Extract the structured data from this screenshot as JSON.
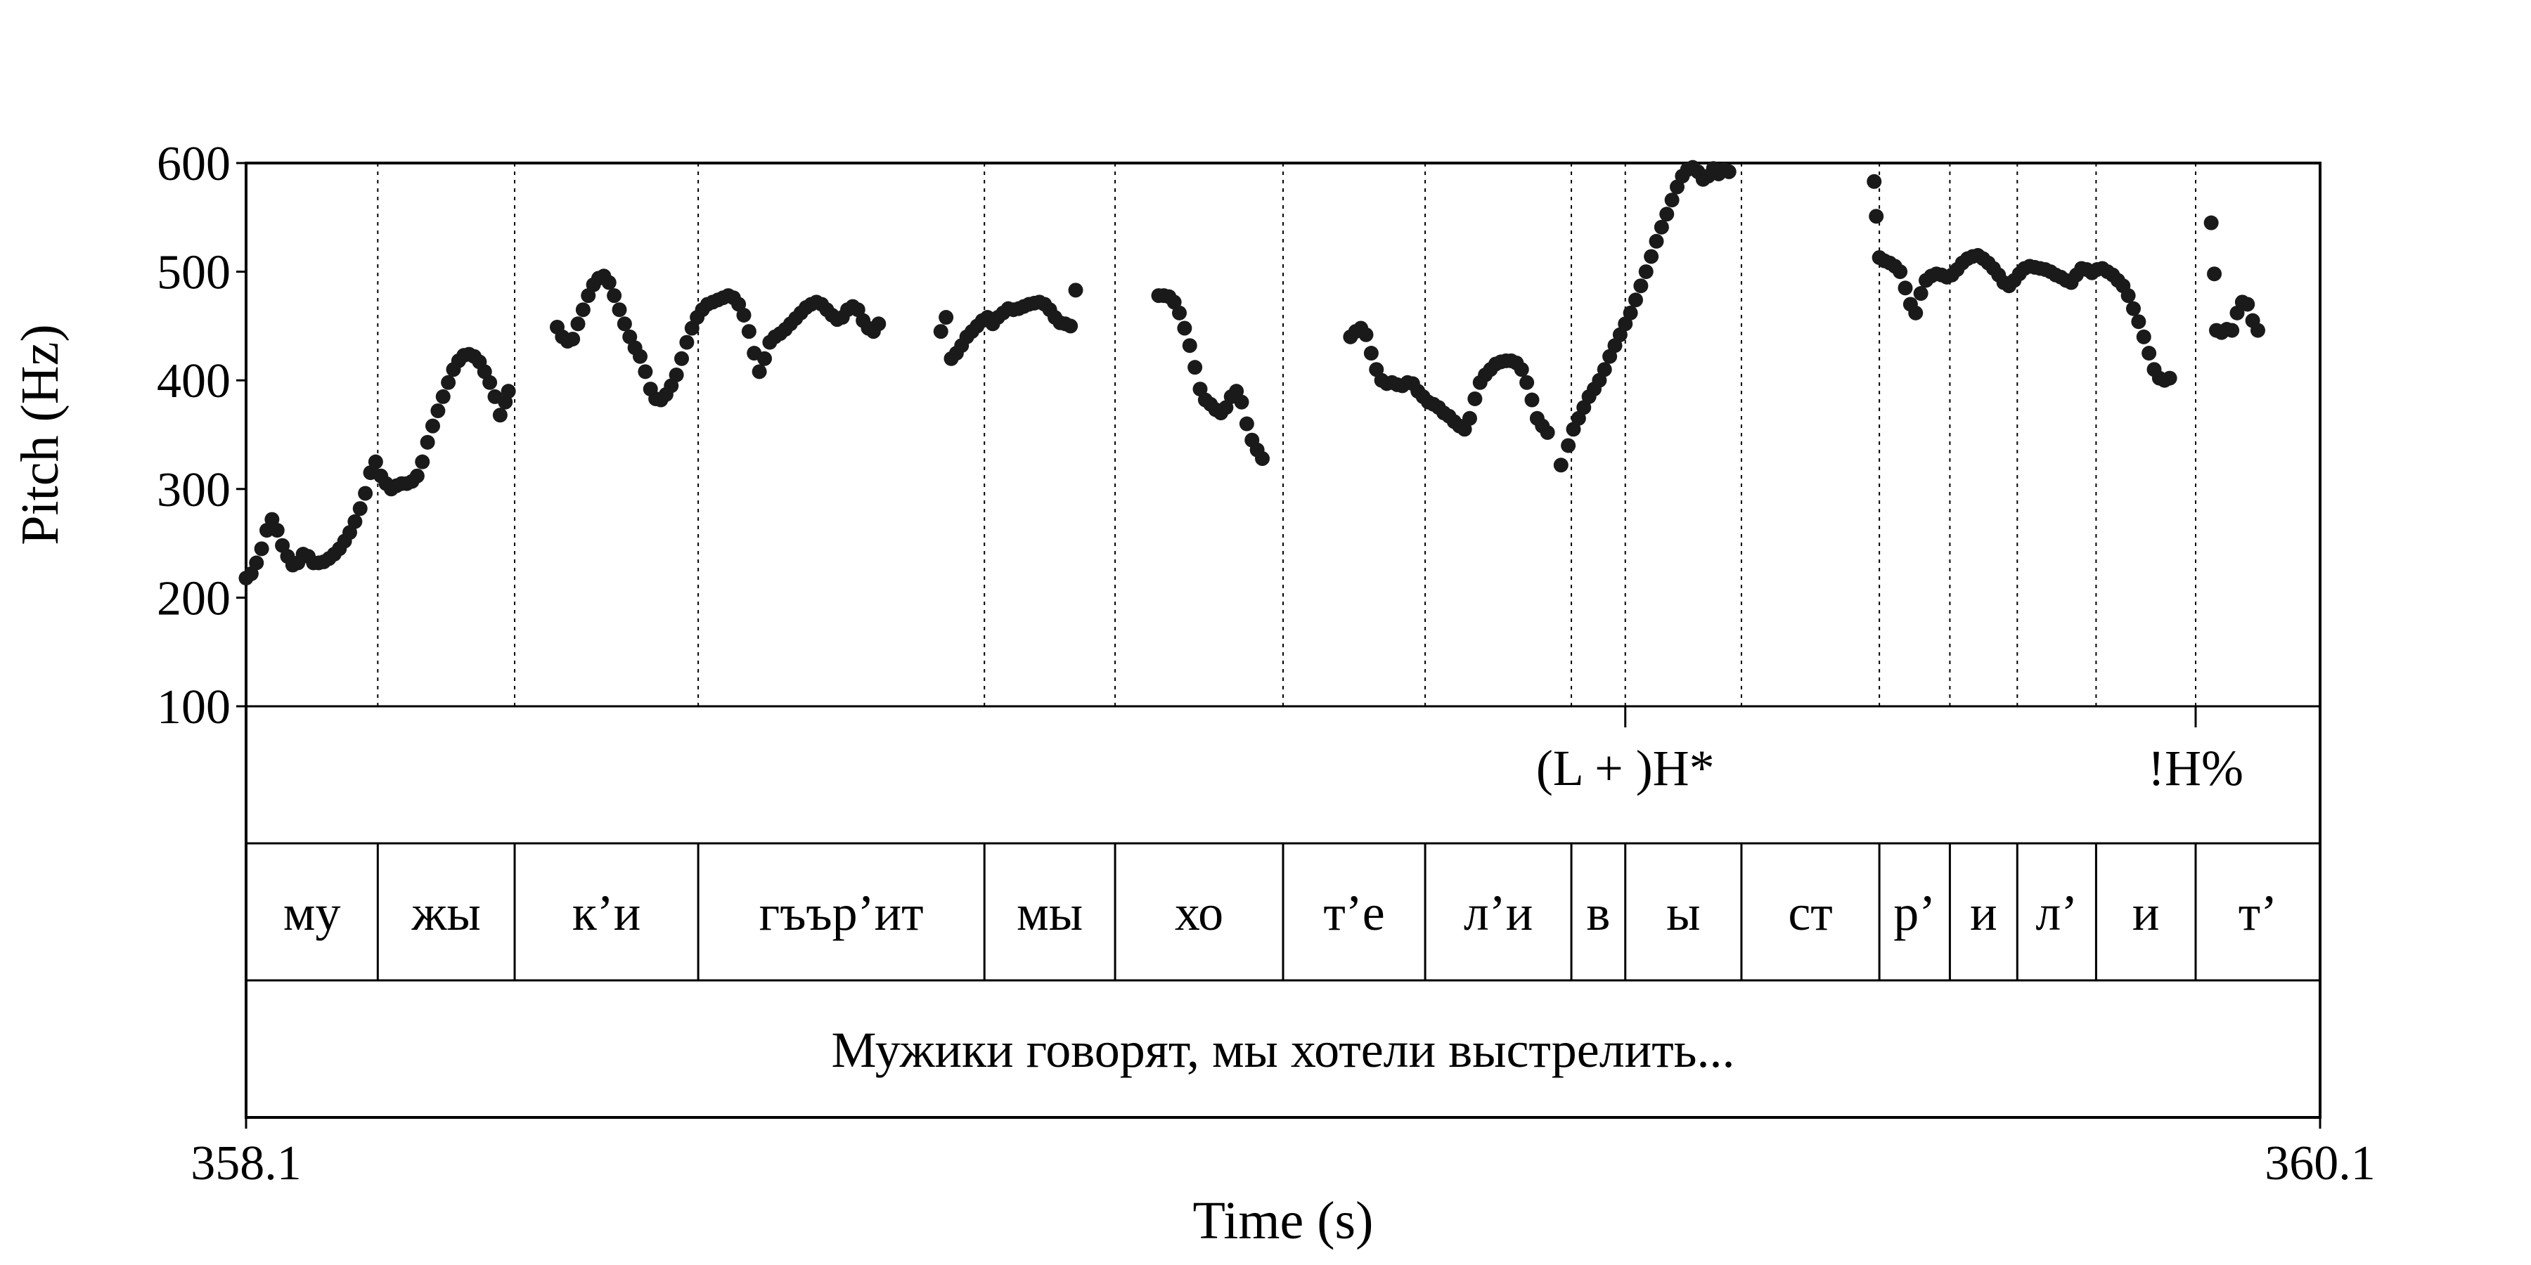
{
  "chart_data": {
    "type": "scatter",
    "ylabel": "Pitch (Hz)",
    "xlabel": "Time (s)",
    "ylim": [
      100,
      600
    ],
    "yticks": [
      "600",
      "500",
      "400",
      "300",
      "200",
      "100"
    ],
    "xlim": [
      358.1,
      360.1
    ],
    "xticks": [
      "358.1",
      "360.1"
    ],
    "tones": [
      {
        "time": 359.43,
        "label": "(L + )H*"
      },
      {
        "time": 359.98,
        "label": "!H%"
      }
    ],
    "syllable_boundaries": [
      358.1,
      358.227,
      358.359,
      358.536,
      358.812,
      358.938,
      359.1,
      359.237,
      359.378,
      359.43,
      359.542,
      359.675,
      359.743,
      359.808,
      359.884,
      359.98,
      360.1
    ],
    "syllables": [
      "му",
      "жы",
      "к’и",
      "гъър’ит",
      "мы",
      "хо",
      "т’е",
      "л’и",
      "в",
      "ы",
      "ст",
      "р’",
      "и",
      "л’",
      "и",
      "т’"
    ],
    "sentence": "Мужики говорят, мы хотели выстрелить...",
    "series": [
      {
        "points": [
          [
            358.1,
            218
          ],
          [
            358.105,
            222
          ],
          [
            358.11,
            232
          ],
          [
            358.115,
            245
          ],
          [
            358.12,
            262
          ],
          [
            358.125,
            272
          ],
          [
            358.13,
            262
          ],
          [
            358.135,
            248
          ],
          [
            358.14,
            238
          ],
          [
            358.145,
            230
          ],
          [
            358.15,
            232
          ],
          [
            358.155,
            240
          ],
          [
            358.16,
            238
          ],
          [
            358.165,
            232
          ],
          [
            358.17,
            232
          ],
          [
            358.175,
            233
          ],
          [
            358.18,
            236
          ],
          [
            358.185,
            240
          ],
          [
            358.19,
            245
          ],
          [
            358.195,
            252
          ],
          [
            358.2,
            260
          ],
          [
            358.205,
            270
          ],
          [
            358.21,
            282
          ],
          [
            358.215,
            296
          ],
          [
            358.22,
            315
          ],
          [
            358.225,
            325
          ],
          [
            358.23,
            312
          ],
          [
            358.235,
            305
          ],
          [
            358.24,
            300
          ],
          [
            358.245,
            303
          ],
          [
            358.25,
            305
          ],
          [
            358.255,
            305
          ],
          [
            358.26,
            307
          ],
          [
            358.265,
            312
          ],
          [
            358.27,
            325
          ],
          [
            358.275,
            343
          ],
          [
            358.28,
            358
          ],
          [
            358.285,
            372
          ],
          [
            358.29,
            385
          ],
          [
            358.295,
            398
          ],
          [
            358.3,
            410
          ],
          [
            358.305,
            418
          ],
          [
            358.31,
            423
          ],
          [
            358.315,
            424
          ],
          [
            358.32,
            422
          ],
          [
            358.325,
            417
          ],
          [
            358.33,
            408
          ],
          [
            358.335,
            398
          ],
          [
            358.34,
            385
          ],
          [
            358.345,
            368
          ],
          [
            358.35,
            380
          ],
          [
            358.353,
            390
          ],
          [
            358.4,
            449
          ],
          [
            358.405,
            440
          ],
          [
            358.41,
            436
          ],
          [
            358.415,
            438
          ],
          [
            358.42,
            452
          ],
          [
            358.425,
            465
          ],
          [
            358.43,
            478
          ],
          [
            358.435,
            488
          ],
          [
            358.44,
            494
          ],
          [
            358.445,
            496
          ],
          [
            358.45,
            490
          ],
          [
            358.455,
            478
          ],
          [
            358.46,
            465
          ],
          [
            358.465,
            452
          ],
          [
            358.47,
            440
          ],
          [
            358.475,
            430
          ],
          [
            358.48,
            422
          ],
          [
            358.485,
            408
          ],
          [
            358.49,
            392
          ],
          [
            358.495,
            383
          ],
          [
            358.5,
            382
          ],
          [
            358.505,
            387
          ],
          [
            358.51,
            395
          ],
          [
            358.515,
            405
          ],
          [
            358.52,
            420
          ],
          [
            358.525,
            435
          ],
          [
            358.53,
            448
          ],
          [
            358.535,
            458
          ],
          [
            358.54,
            465
          ],
          [
            358.545,
            470
          ],
          [
            358.55,
            472
          ],
          [
            358.555,
            474
          ],
          [
            358.56,
            476
          ],
          [
            358.565,
            478
          ],
          [
            358.57,
            476
          ],
          [
            358.575,
            470
          ],
          [
            358.58,
            460
          ],
          [
            358.585,
            445
          ],
          [
            358.59,
            425
          ],
          [
            358.595,
            408
          ],
          [
            358.6,
            420
          ],
          [
            358.605,
            435
          ],
          [
            358.61,
            440
          ],
          [
            358.615,
            443
          ],
          [
            358.62,
            447
          ],
          [
            358.625,
            452
          ],
          [
            358.63,
            457
          ],
          [
            358.635,
            462
          ],
          [
            358.64,
            467
          ],
          [
            358.645,
            470
          ],
          [
            358.65,
            472
          ],
          [
            358.655,
            470
          ],
          [
            358.66,
            465
          ],
          [
            358.665,
            460
          ],
          [
            358.67,
            456
          ],
          [
            358.675,
            458
          ],
          [
            358.68,
            465
          ],
          [
            358.685,
            468
          ],
          [
            358.69,
            465
          ],
          [
            358.695,
            455
          ],
          [
            358.7,
            448
          ],
          [
            358.705,
            445
          ],
          [
            358.71,
            452
          ],
          [
            358.77,
            445
          ],
          [
            358.775,
            458
          ],
          [
            358.78,
            420
          ],
          [
            358.785,
            425
          ],
          [
            358.79,
            432
          ],
          [
            358.795,
            440
          ],
          [
            358.8,
            445
          ],
          [
            358.805,
            450
          ],
          [
            358.81,
            455
          ],
          [
            358.815,
            458
          ],
          [
            358.82,
            452
          ],
          [
            358.825,
            458
          ],
          [
            358.83,
            462
          ],
          [
            358.835,
            466
          ],
          [
            358.84,
            465
          ],
          [
            358.845,
            466
          ],
          [
            358.85,
            468
          ],
          [
            358.855,
            470
          ],
          [
            358.86,
            471
          ],
          [
            358.865,
            472
          ],
          [
            358.87,
            470
          ],
          [
            358.875,
            465
          ],
          [
            358.88,
            458
          ],
          [
            358.885,
            453
          ],
          [
            358.89,
            452
          ],
          [
            358.895,
            450
          ],
          [
            358.9,
            483
          ],
          [
            358.98,
            478
          ],
          [
            358.985,
            478
          ],
          [
            358.99,
            477
          ],
          [
            358.995,
            472
          ],
          [
            359.0,
            462
          ],
          [
            359.005,
            448
          ],
          [
            359.01,
            432
          ],
          [
            359.015,
            412
          ],
          [
            359.02,
            392
          ],
          [
            359.025,
            382
          ],
          [
            359.03,
            378
          ],
          [
            359.035,
            373
          ],
          [
            359.04,
            370
          ],
          [
            359.045,
            375
          ],
          [
            359.05,
            385
          ],
          [
            359.055,
            390
          ],
          [
            359.06,
            380
          ],
          [
            359.065,
            360
          ],
          [
            359.07,
            345
          ],
          [
            359.075,
            336
          ],
          [
            359.08,
            328
          ],
          [
            359.165,
            440
          ],
          [
            359.17,
            445
          ],
          [
            359.175,
            448
          ],
          [
            359.18,
            442
          ],
          [
            359.185,
            425
          ],
          [
            359.19,
            410
          ],
          [
            359.195,
            400
          ],
          [
            359.2,
            397
          ],
          [
            359.205,
            398
          ],
          [
            359.21,
            396
          ],
          [
            359.215,
            395
          ],
          [
            359.22,
            398
          ],
          [
            359.225,
            397
          ],
          [
            359.23,
            390
          ],
          [
            359.235,
            385
          ],
          [
            359.24,
            380
          ],
          [
            359.245,
            378
          ],
          [
            359.25,
            375
          ],
          [
            359.255,
            370
          ],
          [
            359.26,
            367
          ],
          [
            359.265,
            362
          ],
          [
            359.27,
            358
          ],
          [
            359.275,
            355
          ],
          [
            359.28,
            365
          ],
          [
            359.285,
            383
          ],
          [
            359.29,
            398
          ],
          [
            359.295,
            405
          ],
          [
            359.3,
            410
          ],
          [
            359.305,
            415
          ],
          [
            359.31,
            417
          ],
          [
            359.315,
            418
          ],
          [
            359.32,
            418
          ],
          [
            359.325,
            416
          ],
          [
            359.33,
            410
          ],
          [
            359.335,
            398
          ],
          [
            359.34,
            382
          ],
          [
            359.345,
            365
          ],
          [
            359.35,
            358
          ],
          [
            359.355,
            352
          ],
          [
            359.368,
            322
          ],
          [
            359.375,
            340
          ],
          [
            359.38,
            355
          ],
          [
            359.385,
            365
          ],
          [
            359.39,
            375
          ],
          [
            359.395,
            385
          ],
          [
            359.4,
            392
          ],
          [
            359.405,
            400
          ],
          [
            359.41,
            410
          ],
          [
            359.415,
            422
          ],
          [
            359.42,
            432
          ],
          [
            359.425,
            442
          ],
          [
            359.43,
            452
          ],
          [
            359.435,
            462
          ],
          [
            359.44,
            474
          ],
          [
            359.445,
            487
          ],
          [
            359.45,
            500
          ],
          [
            359.455,
            514
          ],
          [
            359.46,
            528
          ],
          [
            359.465,
            541
          ],
          [
            359.47,
            553
          ],
          [
            359.475,
            566
          ],
          [
            359.48,
            578
          ],
          [
            359.485,
            588
          ],
          [
            359.49,
            594
          ],
          [
            359.495,
            596
          ],
          [
            359.5,
            592
          ],
          [
            359.505,
            585
          ],
          [
            359.51,
            588
          ],
          [
            359.515,
            595
          ],
          [
            359.52,
            590
          ],
          [
            359.525,
            594
          ],
          [
            359.53,
            592
          ],
          [
            359.67,
            583
          ],
          [
            359.672,
            551
          ],
          [
            359.675,
            513
          ],
          [
            359.68,
            510
          ],
          [
            359.685,
            508
          ],
          [
            359.69,
            505
          ],
          [
            359.695,
            500
          ],
          [
            359.7,
            485
          ],
          [
            359.705,
            470
          ],
          [
            359.71,
            462
          ],
          [
            359.715,
            480
          ],
          [
            359.72,
            492
          ],
          [
            359.725,
            496
          ],
          [
            359.73,
            498
          ],
          [
            359.735,
            497
          ],
          [
            359.74,
            495
          ],
          [
            359.745,
            497
          ],
          [
            359.75,
            502
          ],
          [
            359.755,
            508
          ],
          [
            359.76,
            512
          ],
          [
            359.765,
            514
          ],
          [
            359.77,
            515
          ],
          [
            359.775,
            512
          ],
          [
            359.78,
            508
          ],
          [
            359.785,
            503
          ],
          [
            359.79,
            497
          ],
          [
            359.795,
            490
          ],
          [
            359.8,
            487
          ],
          [
            359.805,
            492
          ],
          [
            359.81,
            498
          ],
          [
            359.815,
            503
          ],
          [
            359.82,
            505
          ],
          [
            359.825,
            504
          ],
          [
            359.83,
            503
          ],
          [
            359.835,
            502
          ],
          [
            359.84,
            500
          ],
          [
            359.845,
            497
          ],
          [
            359.85,
            495
          ],
          [
            359.855,
            492
          ],
          [
            359.86,
            490
          ],
          [
            359.865,
            497
          ],
          [
            359.87,
            503
          ],
          [
            359.875,
            502
          ],
          [
            359.88,
            499
          ],
          [
            359.885,
            502
          ],
          [
            359.89,
            503
          ],
          [
            359.895,
            500
          ],
          [
            359.9,
            497
          ],
          [
            359.905,
            492
          ],
          [
            359.91,
            487
          ],
          [
            359.915,
            478
          ],
          [
            359.92,
            466
          ],
          [
            359.925,
            454
          ],
          [
            359.93,
            440
          ],
          [
            359.935,
            425
          ],
          [
            359.94,
            410
          ],
          [
            359.945,
            402
          ],
          [
            359.95,
            400
          ],
          [
            359.955,
            402
          ],
          [
            359.995,
            545
          ],
          [
            359.998,
            498
          ],
          [
            360.0,
            446
          ],
          [
            360.005,
            444
          ],
          [
            360.01,
            447
          ],
          [
            360.015,
            446
          ],
          [
            360.02,
            462
          ],
          [
            360.025,
            472
          ],
          [
            360.03,
            470
          ],
          [
            360.035,
            455
          ],
          [
            360.04,
            446
          ]
        ]
      }
    ]
  }
}
